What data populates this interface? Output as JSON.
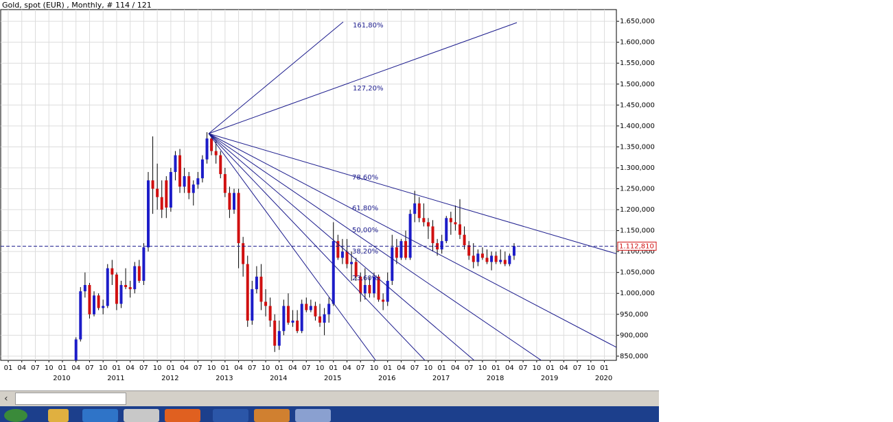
{
  "chart_data": {
    "type": "candlestick",
    "title": "Gold, spot (EUR) , Monthly, # 114 / 121",
    "x": [
      "2010-04",
      "2010-05",
      "2010-06",
      "2010-07",
      "2010-08",
      "2010-09",
      "2010-10",
      "2010-11",
      "2010-12",
      "2011-01",
      "2011-02",
      "2011-03",
      "2011-04",
      "2011-05",
      "2011-06",
      "2011-07",
      "2011-08",
      "2011-09",
      "2011-10",
      "2011-11",
      "2011-12",
      "2012-01",
      "2012-02",
      "2012-03",
      "2012-04",
      "2012-05",
      "2012-06",
      "2012-07",
      "2012-08",
      "2012-09",
      "2012-10",
      "2012-11",
      "2012-12",
      "2013-01",
      "2013-02",
      "2013-03",
      "2013-04",
      "2013-05",
      "2013-06",
      "2013-07",
      "2013-08",
      "2013-09",
      "2013-10",
      "2013-11",
      "2013-12",
      "2014-01",
      "2014-02",
      "2014-03",
      "2014-04",
      "2014-05",
      "2014-06",
      "2014-07",
      "2014-08",
      "2014-09",
      "2014-10",
      "2014-11",
      "2014-12",
      "2015-01",
      "2015-02",
      "2015-03",
      "2015-04",
      "2015-05",
      "2015-06",
      "2015-07",
      "2015-08",
      "2015-09",
      "2015-10",
      "2015-11",
      "2015-12",
      "2016-01",
      "2016-02",
      "2016-03",
      "2016-04",
      "2016-05",
      "2016-06",
      "2016-07",
      "2016-08",
      "2016-09",
      "2016-10",
      "2016-11",
      "2016-12",
      "2017-01",
      "2017-02",
      "2017-03",
      "2017-04",
      "2017-05",
      "2017-06",
      "2017-07",
      "2017-08",
      "2017-09",
      "2017-10",
      "2017-11",
      "2017-12",
      "2018-01",
      "2018-02",
      "2018-03",
      "2018-04",
      "2018-05"
    ],
    "open": [
      840,
      890,
      1005,
      1020,
      950,
      995,
      965,
      970,
      1060,
      1045,
      975,
      1020,
      1015,
      1010,
      1065,
      1030,
      1110,
      1270,
      1250,
      1230,
      1270,
      1205,
      1290,
      1330,
      1255,
      1280,
      1240,
      1260,
      1275,
      1320,
      1370,
      1340,
      1330,
      1285,
      1240,
      1200,
      1240,
      1120,
      1070,
      935,
      1010,
      1040,
      980,
      970,
      935,
      875,
      910,
      970,
      930,
      935,
      910,
      975,
      960,
      970,
      945,
      930,
      950,
      975,
      1125,
      1085,
      1100,
      1070,
      1075,
      1040,
      1000,
      1020,
      1000,
      1040,
      985,
      980,
      1030,
      1110,
      1085,
      1125,
      1085,
      1190,
      1215,
      1180,
      1170,
      1160,
      1120,
      1105,
      1125,
      1180,
      1170,
      1165,
      1140,
      1115,
      1090,
      1075,
      1095,
      1085,
      1075,
      1090,
      1075,
      1080,
      1070,
      1090
    ],
    "high": [
      895,
      1015,
      1050,
      1025,
      1005,
      1000,
      985,
      1070,
      1080,
      1050,
      1030,
      1060,
      1030,
      1075,
      1080,
      1120,
      1290,
      1375,
      1310,
      1270,
      1280,
      1300,
      1340,
      1345,
      1300,
      1290,
      1270,
      1290,
      1330,
      1385,
      1380,
      1365,
      1340,
      1300,
      1255,
      1250,
      1250,
      1135,
      1090,
      1030,
      1065,
      1070,
      1010,
      990,
      950,
      935,
      985,
      1000,
      960,
      960,
      985,
      990,
      985,
      980,
      975,
      965,
      990,
      1170,
      1140,
      1130,
      1130,
      1100,
      1085,
      1050,
      1060,
      1040,
      1050,
      1045,
      1000,
      1050,
      1140,
      1130,
      1130,
      1150,
      1200,
      1245,
      1230,
      1215,
      1180,
      1175,
      1130,
      1140,
      1185,
      1195,
      1210,
      1225,
      1160,
      1125,
      1120,
      1105,
      1110,
      1105,
      1100,
      1100,
      1105,
      1100,
      1095,
      1120
    ],
    "low": [
      835,
      885,
      990,
      940,
      945,
      960,
      950,
      965,
      1020,
      960,
      965,
      1010,
      990,
      1000,
      1025,
      1020,
      1100,
      1190,
      1200,
      1180,
      1180,
      1195,
      1270,
      1240,
      1240,
      1225,
      1210,
      1250,
      1265,
      1310,
      1330,
      1310,
      1275,
      1230,
      1180,
      1190,
      1060,
      1040,
      920,
      925,
      1000,
      960,
      945,
      920,
      860,
      865,
      900,
      925,
      920,
      905,
      905,
      955,
      955,
      935,
      920,
      900,
      930,
      970,
      1080,
      1070,
      1060,
      1030,
      1030,
      980,
      985,
      990,
      990,
      980,
      960,
      970,
      1020,
      1070,
      1080,
      1080,
      1080,
      1170,
      1170,
      1160,
      1130,
      1100,
      1090,
      1095,
      1120,
      1140,
      1150,
      1130,
      1105,
      1080,
      1060,
      1065,
      1080,
      1070,
      1055,
      1070,
      1070,
      1065,
      1065,
      1080
    ],
    "close": [
      890,
      1005,
      1020,
      950,
      995,
      965,
      970,
      1060,
      1045,
      975,
      1020,
      1015,
      1010,
      1065,
      1030,
      1110,
      1270,
      1250,
      1230,
      1200,
      1205,
      1290,
      1330,
      1255,
      1280,
      1240,
      1260,
      1275,
      1320,
      1370,
      1340,
      1330,
      1285,
      1240,
      1200,
      1240,
      1120,
      1070,
      935,
      1010,
      1040,
      980,
      970,
      935,
      875,
      910,
      970,
      930,
      935,
      910,
      975,
      960,
      970,
      945,
      930,
      950,
      975,
      1125,
      1085,
      1100,
      1070,
      1075,
      1040,
      1000,
      1020,
      1000,
      1040,
      985,
      980,
      1030,
      1110,
      1085,
      1125,
      1085,
      1190,
      1215,
      1180,
      1170,
      1160,
      1120,
      1105,
      1125,
      1180,
      1170,
      1165,
      1140,
      1115,
      1090,
      1075,
      1095,
      1085,
      1075,
      1090,
      1075,
      1080,
      1070,
      1090,
      1112.81
    ],
    "up_color": "#1c1cc8",
    "down_color": "#d01010",
    "ylim": [
      840,
      1678
    ],
    "yticks": [
      {
        "value": 850,
        "label": "850,000"
      },
      {
        "value": 900,
        "label": "900,000"
      },
      {
        "value": 950,
        "label": "950,000"
      },
      {
        "value": 1000,
        "label": "1.000,000"
      },
      {
        "value": 1050,
        "label": "1.050,000"
      },
      {
        "value": 1100,
        "label": "1.100,000"
      },
      {
        "value": 1150,
        "label": "1.150,000"
      },
      {
        "value": 1200,
        "label": "1.200,000"
      },
      {
        "value": 1250,
        "label": "1.250,000"
      },
      {
        "value": 1300,
        "label": "1.300,000"
      },
      {
        "value": 1350,
        "label": "1.350,000"
      },
      {
        "value": 1400,
        "label": "1.400,000"
      },
      {
        "value": 1450,
        "label": "1.450,000"
      },
      {
        "value": 1500,
        "label": "1.500,000"
      },
      {
        "value": 1550,
        "label": "1.550,000"
      },
      {
        "value": 1600,
        "label": "1.600,000"
      },
      {
        "value": 1650,
        "label": "1.650,000"
      }
    ],
    "xticks": [
      {
        "value": "2009-01",
        "label": "01"
      },
      {
        "value": "2009-04",
        "label": "04"
      },
      {
        "value": "2009-07",
        "label": "07"
      },
      {
        "value": "2009-10",
        "label": "10"
      },
      {
        "value": "2010-01",
        "label": "01"
      },
      {
        "value": "2010-04",
        "label": "04"
      },
      {
        "value": "2010-07",
        "label": "07"
      },
      {
        "value": "2010-10",
        "label": "10"
      },
      {
        "value": "2011-01",
        "label": "01"
      },
      {
        "value": "2011-04",
        "label": "04"
      },
      {
        "value": "2011-07",
        "label": "07"
      },
      {
        "value": "2011-10",
        "label": "10"
      },
      {
        "value": "2012-01",
        "label": "01"
      },
      {
        "value": "2012-04",
        "label": "04"
      },
      {
        "value": "2012-07",
        "label": "07"
      },
      {
        "value": "2012-10",
        "label": "10"
      },
      {
        "value": "2013-01",
        "label": "01"
      },
      {
        "value": "2013-04",
        "label": "04"
      },
      {
        "value": "2013-07",
        "label": "07"
      },
      {
        "value": "2013-10",
        "label": "10"
      },
      {
        "value": "2014-01",
        "label": "01"
      },
      {
        "value": "2014-04",
        "label": "04"
      },
      {
        "value": "2014-07",
        "label": "07"
      },
      {
        "value": "2014-10",
        "label": "10"
      },
      {
        "value": "2015-01",
        "label": "01"
      },
      {
        "value": "2015-04",
        "label": "04"
      },
      {
        "value": "2015-07",
        "label": "07"
      },
      {
        "value": "2015-10",
        "label": "10"
      },
      {
        "value": "2016-01",
        "label": "01"
      },
      {
        "value": "2016-04",
        "label": "04"
      },
      {
        "value": "2016-07",
        "label": "07"
      },
      {
        "value": "2016-10",
        "label": "10"
      },
      {
        "value": "2017-01",
        "label": "01"
      },
      {
        "value": "2017-04",
        "label": "04"
      },
      {
        "value": "2017-07",
        "label": "07"
      },
      {
        "value": "2017-10",
        "label": "10"
      },
      {
        "value": "2018-01",
        "label": "01"
      },
      {
        "value": "2018-04",
        "label": "04"
      },
      {
        "value": "2018-07",
        "label": "07"
      },
      {
        "value": "2018-10",
        "label": "10"
      },
      {
        "value": "2019-01",
        "label": "01"
      },
      {
        "value": "2019-04",
        "label": "04"
      },
      {
        "value": "2019-07",
        "label": "07"
      },
      {
        "value": "2019-10",
        "label": "10"
      },
      {
        "value": "2020-01",
        "label": "01"
      }
    ],
    "years": [
      {
        "value": "2010-01",
        "label": "2010"
      },
      {
        "value": "2011-01",
        "label": "2011"
      },
      {
        "value": "2012-01",
        "label": "2012"
      },
      {
        "value": "2013-01",
        "label": "2013"
      },
      {
        "value": "2014-01",
        "label": "2014"
      },
      {
        "value": "2015-01",
        "label": "2015"
      },
      {
        "value": "2016-01",
        "label": "2016"
      },
      {
        "value": "2017-01",
        "label": "2017"
      },
      {
        "value": "2018-01",
        "label": "2018"
      },
      {
        "value": "2019-01",
        "label": "2019"
      },
      {
        "value": "2020-01",
        "label": "2020"
      }
    ],
    "current_price": {
      "value": 1112.81,
      "label": "1.112,810"
    },
    "fan_labels": [
      "161,80%",
      "127,20%",
      "78,60%",
      "61,80%",
      "50,00%",
      "38,20%",
      "23,60%"
    ],
    "grid": true
  }
}
